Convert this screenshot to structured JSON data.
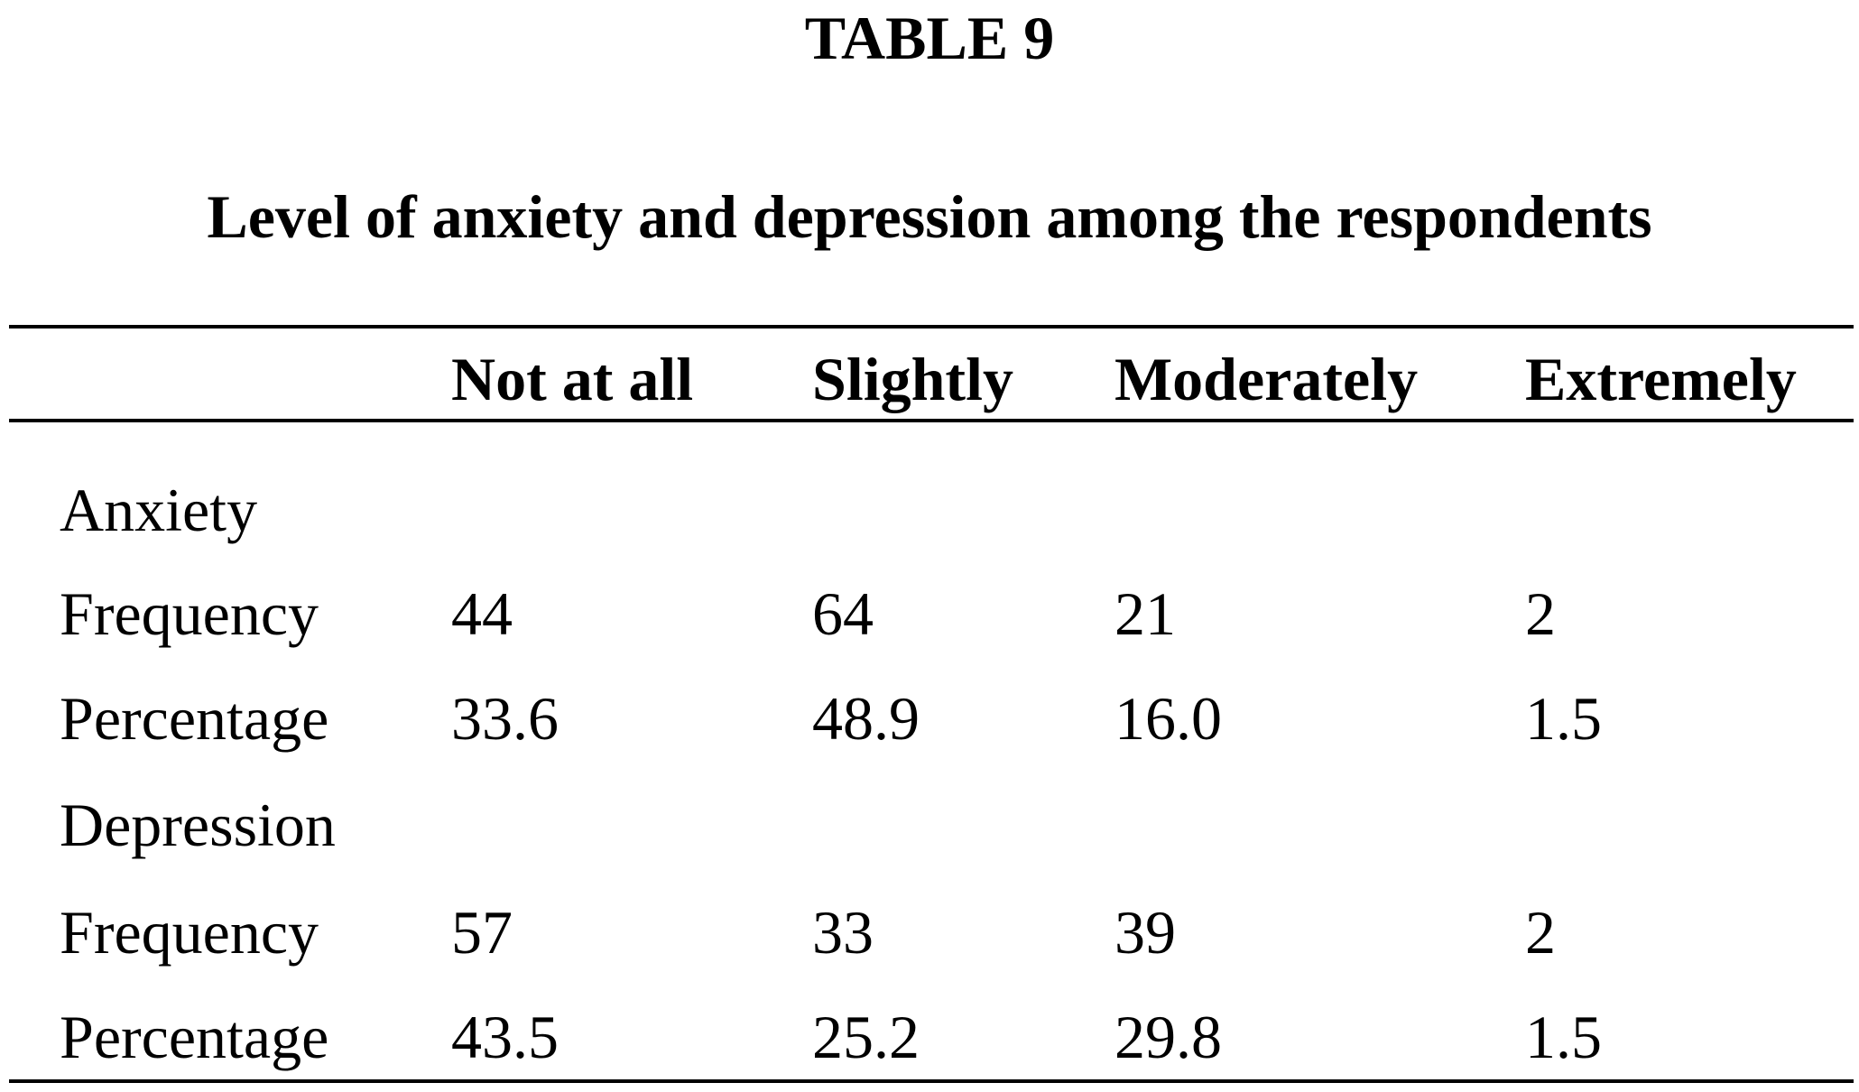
{
  "header": {
    "label": "TABLE 9",
    "title": "Level of anxiety and depression among the respondents"
  },
  "table": {
    "columns": [
      "Not at all",
      "Slightly",
      "Moderately",
      "Extremely"
    ],
    "rows": [
      {
        "label": "Anxiety",
        "cells": []
      },
      {
        "label": "Frequency",
        "cells": [
          "44",
          "64",
          "21",
          "2"
        ]
      },
      {
        "label": "Percentage",
        "cells": [
          "33.6",
          "48.9",
          "16.0",
          "1.5"
        ]
      },
      {
        "label": "Depression",
        "cells": []
      },
      {
        "label": "Frequency",
        "cells": [
          "57",
          "33",
          "39",
          "2"
        ]
      },
      {
        "label": "Percentage",
        "cells": [
          "43.5",
          "25.2",
          "29.8",
          "1.5"
        ]
      }
    ]
  }
}
